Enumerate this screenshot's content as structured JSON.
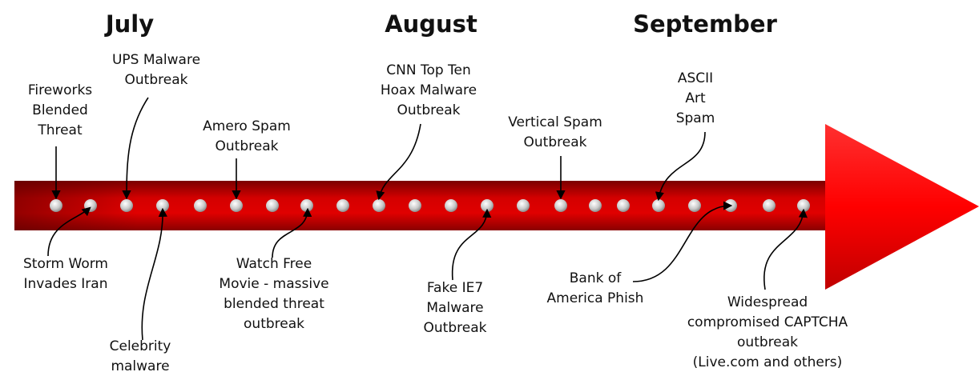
{
  "months": [
    "July",
    "August",
    "September"
  ],
  "events": [
    {
      "lines": [
        "Fireworks",
        "Blended",
        "Threat"
      ]
    },
    {
      "lines": [
        "UPS Malware",
        "Outbreak"
      ]
    },
    {
      "lines": [
        "Amero Spam",
        "Outbreak"
      ]
    },
    {
      "lines": [
        "CNN Top Ten",
        "Hoax Malware",
        "Outbreak"
      ]
    },
    {
      "lines": [
        "Vertical Spam",
        "Outbreak"
      ]
    },
    {
      "lines": [
        "ASCII",
        "Art",
        "Spam"
      ]
    },
    {
      "lines": [
        "Storm Worm",
        "Invades Iran"
      ]
    },
    {
      "lines": [
        "Celebrity",
        "malware"
      ]
    },
    {
      "lines": [
        "Watch Free",
        "Movie - massive",
        "blended threat",
        "outbreak"
      ]
    },
    {
      "lines": [
        "Fake IE7",
        "Malware",
        "Outbreak"
      ]
    },
    {
      "lines": [
        "Bank of",
        "America Phish"
      ]
    },
    {
      "lines": [
        "Widespread",
        "compromised CAPTCHA",
        "outbreak",
        "(Live.com and others)"
      ]
    }
  ]
}
